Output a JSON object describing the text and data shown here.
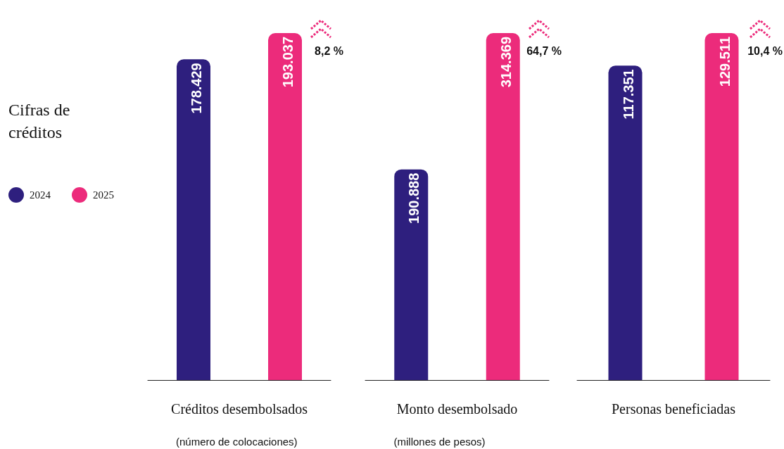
{
  "chart_data": [
    {
      "type": "other",
      "title": "Cifras de créditos",
      "legend": "left",
      "series": [
        {
          "name": "2024",
          "color": "#2e1f7e"
        },
        {
          "name": "2025",
          "color": "#ec2b7b"
        }
      ]
    },
    {
      "type": "bar",
      "categories": [
        null,
        null
      ],
      "xlabel": "Créditos desembolsados",
      "annotations": [
        "(número de colocaciones)",
        "8,2 %"
      ],
      "series": [
        {
          "colors": [
            "#2e1f7e",
            "#ec2b7b"
          ],
          "values": [
            178429,
            193037
          ],
          "value_labels": [
            "178.429",
            "193.037"
          ]
        }
      ]
    },
    {
      "type": "bar",
      "categories": [
        null,
        null
      ],
      "xlabel": "Monto desembolsado",
      "annotations": [
        "(millones de pesos)",
        "64,7 %"
      ],
      "series": [
        {
          "colors": [
            "#2e1f7e",
            "#ec2b7b"
          ],
          "values": [
            190888,
            314369
          ],
          "value_labels": [
            "190.888",
            "314.369"
          ]
        }
      ]
    },
    {
      "type": "bar",
      "categories": [
        null,
        null
      ],
      "xlabel": "Personas beneficiadas",
      "annotations": [
        "10,4 %"
      ],
      "series": [
        {
          "colors": [
            "#2e1f7e",
            "#ec2b7b"
          ],
          "values": [
            117351,
            129511
          ],
          "value_labels": [
            "117.351",
            "129.511"
          ]
        }
      ]
    }
  ]
}
